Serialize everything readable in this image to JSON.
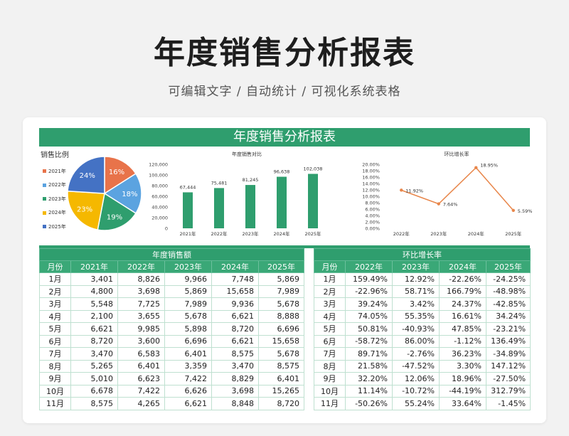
{
  "header": {
    "title": "年度销售分析报表",
    "subtitle": "可编辑文字 / 自动统计 / 可视化系统表格"
  },
  "sheet": {
    "title": "年度销售分析报表",
    "pie_title": "销售比例",
    "bar_title": "年度销售对比",
    "line_title": "环比增长率"
  },
  "colors": {
    "accent": "#2f9e6e",
    "y2021": "#e8734a",
    "y2022": "#5ba3e0",
    "y2023": "#2f9e6e",
    "y2024": "#f5b800",
    "y2025": "#4472c4",
    "line": "#e8864a"
  },
  "chart_data": [
    {
      "type": "pie",
      "title": "销售比例",
      "categories": [
        "2021年",
        "2022年",
        "2023年",
        "2024年",
        "2025年"
      ],
      "values": [
        16,
        18,
        19,
        23,
        24
      ],
      "labels": [
        "16%",
        "18%",
        "19%",
        "23%",
        "24%"
      ]
    },
    {
      "type": "bar",
      "title": "年度销售对比",
      "categories": [
        "2021年",
        "2022年",
        "2023年",
        "2024年",
        "2025年"
      ],
      "values": [
        67444,
        75481,
        81245,
        96638,
        102038
      ],
      "labels": [
        "67,444",
        "75,481",
        "81,245",
        "96,638",
        "102,038"
      ],
      "ylim": [
        0,
        120000
      ],
      "yticks": [
        "0",
        "20,000",
        "40,000",
        "60,000",
        "80,000",
        "100,000",
        "120,000"
      ]
    },
    {
      "type": "line",
      "title": "环比增长率",
      "categories": [
        "2022年",
        "2023年",
        "2024年",
        "2025年"
      ],
      "values": [
        11.92,
        7.64,
        18.95,
        5.59
      ],
      "labels": [
        "11.92%",
        "7.64%",
        "18.95%",
        "5.59%"
      ],
      "ylim": [
        0,
        20
      ],
      "yticks": [
        "0.00%",
        "2.00%",
        "4.00%",
        "6.00%",
        "8.00%",
        "10.00%",
        "12.00%",
        "14.00%",
        "16.00%",
        "18.00%",
        "20.00%"
      ]
    }
  ],
  "sales_table": {
    "title": "年度销售额",
    "columns": [
      "月份",
      "2021年",
      "2022年",
      "2023年",
      "2024年",
      "2025年"
    ],
    "rows": [
      [
        "1月",
        "3,401",
        "8,826",
        "9,966",
        "7,748",
        "5,869"
      ],
      [
        "2月",
        "4,800",
        "3,698",
        "5,869",
        "15,658",
        "7,989"
      ],
      [
        "3月",
        "5,548",
        "7,725",
        "7,989",
        "9,936",
        "5,678"
      ],
      [
        "4月",
        "2,100",
        "3,655",
        "5,678",
        "6,621",
        "8,888"
      ],
      [
        "5月",
        "6,621",
        "9,985",
        "5,898",
        "8,720",
        "6,696"
      ],
      [
        "6月",
        "8,720",
        "3,600",
        "6,696",
        "6,621",
        "15,658"
      ],
      [
        "7月",
        "3,470",
        "6,583",
        "6,401",
        "8,575",
        "5,678"
      ],
      [
        "8月",
        "5,265",
        "6,401",
        "3,359",
        "3,470",
        "8,575"
      ],
      [
        "9月",
        "5,010",
        "6,623",
        "7,422",
        "8,829",
        "6,401"
      ],
      [
        "10月",
        "6,678",
        "7,422",
        "6,626",
        "3,698",
        "15,265"
      ],
      [
        "11月",
        "8,575",
        "4,265",
        "6,621",
        "8,848",
        "8,720"
      ]
    ]
  },
  "growth_table": {
    "title": "环比增长率",
    "columns": [
      "月份",
      "2022年",
      "2023年",
      "2024年",
      "2025年"
    ],
    "rows": [
      [
        "1月",
        "159.49%",
        "12.92%",
        "-22.26%",
        "-24.25%"
      ],
      [
        "2月",
        "-22.96%",
        "58.71%",
        "166.79%",
        "-48.98%"
      ],
      [
        "3月",
        "39.24%",
        "3.42%",
        "24.37%",
        "-42.85%"
      ],
      [
        "4月",
        "74.05%",
        "55.35%",
        "16.61%",
        "34.24%"
      ],
      [
        "5月",
        "50.81%",
        "-40.93%",
        "47.85%",
        "-23.21%"
      ],
      [
        "6月",
        "-58.72%",
        "86.00%",
        "-1.12%",
        "136.49%"
      ],
      [
        "7月",
        "89.71%",
        "-2.76%",
        "36.23%",
        "-34.89%"
      ],
      [
        "8月",
        "21.58%",
        "-47.52%",
        "3.30%",
        "147.12%"
      ],
      [
        "9月",
        "32.20%",
        "12.06%",
        "18.96%",
        "-27.50%"
      ],
      [
        "10月",
        "11.14%",
        "-10.72%",
        "-44.19%",
        "312.79%"
      ],
      [
        "11月",
        "-50.26%",
        "55.24%",
        "33.64%",
        "-1.45%"
      ]
    ]
  }
}
